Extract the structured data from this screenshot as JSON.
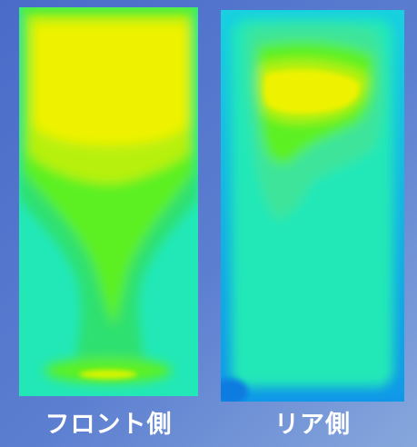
{
  "panels": {
    "front": {
      "label": "フロント側"
    },
    "rear": {
      "label": "リア側"
    }
  },
  "colors": {
    "background": "#5c7ed0",
    "contour_cyan": "#22e8b8",
    "contour_blue": "#18c8e8",
    "contour_green": "#2ee070",
    "contour_bright_green": "#5cf020",
    "contour_yellow_green": "#b8f010",
    "contour_yellow": "#eef200"
  }
}
